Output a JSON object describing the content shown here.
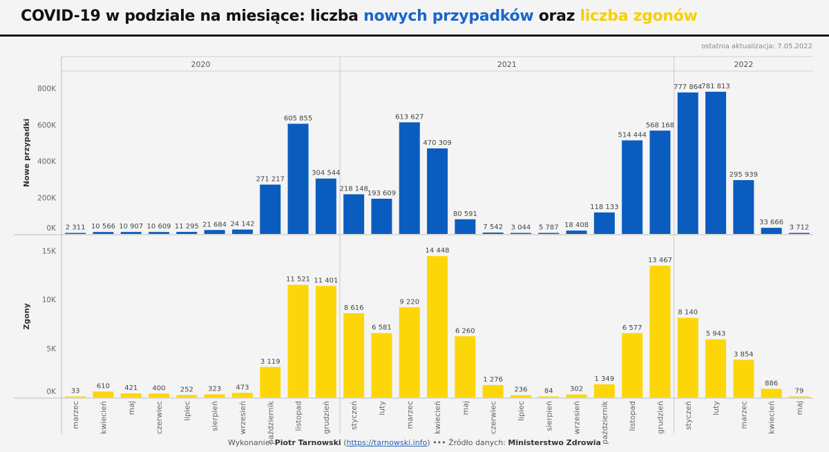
{
  "header": {
    "title_part1": "COVID-19 w podziale na miesiące: liczba ",
    "title_part2": "nowych przypadków",
    "title_part3": " oraz ",
    "title_part4": "liczba zgonów",
    "updated": "ostatnia aktualizacja: 7.05.2022"
  },
  "footer": {
    "made_by_label": "Wykonanie: ",
    "author": "Piotr Tarnowski",
    "link": "https://tarnowski.info",
    "separator": "•••",
    "source_label": "Źródło danych: ",
    "source": "Ministerstwo Zdrowia"
  },
  "colors": {
    "cases": "#0b5cbf",
    "deaths": "#fdd60a",
    "title_cases": "#1a66c9",
    "title_deaths": "#f5d000"
  },
  "chart_data": {
    "type": "bar",
    "years": [
      {
        "label": "2020",
        "count": 10
      },
      {
        "label": "2021",
        "count": 12
      },
      {
        "label": "2022",
        "count": 5
      }
    ],
    "categories": [
      "marzec",
      "kwiecień",
      "maj",
      "czerwiec",
      "lipiec",
      "sierpień",
      "wrzesień",
      "październik",
      "listopad",
      "grudzień",
      "styczeń",
      "luty",
      "marzec",
      "kwiecień",
      "maj",
      "czerwiec",
      "lipiec",
      "sierpień",
      "wrzesień",
      "październik",
      "listopad",
      "grudzień",
      "styczeń",
      "luty",
      "marzec",
      "kwiecień",
      "maj"
    ],
    "panels": [
      {
        "name": "Nowe przypadki",
        "ylabel": "Nowe przypadki",
        "ylim": [
          0,
          850000
        ],
        "ticks": [
          0,
          200000,
          400000,
          600000,
          800000
        ],
        "tick_labels": [
          "0K",
          "200K",
          "400K",
          "600K",
          "800K"
        ],
        "values": [
          2311,
          10566,
          10907,
          10609,
          11295,
          21684,
          24142,
          271217,
          605855,
          304544,
          218148,
          193609,
          613627,
          470309,
          80591,
          7542,
          3044,
          5787,
          18408,
          118133,
          514444,
          568168,
          777864,
          781813,
          295939,
          33666,
          3712
        ],
        "value_labels": [
          "2 311",
          "10 566",
          "10 907",
          "10 609",
          "11 295",
          "21 684",
          "24 142",
          "271 217",
          "605 855",
          "304 544",
          "218 148",
          "193 609",
          "613 627",
          "470 309",
          "80 591",
          "7 542",
          "3 044",
          "5 787",
          "18 408",
          "118 133",
          "514 444",
          "568 168",
          "777 864",
          "781 813",
          "295 939",
          "33 666",
          "3 712"
        ]
      },
      {
        "name": "Zgony",
        "ylabel": "Zgony",
        "ylim": [
          0,
          15800
        ],
        "ticks": [
          0,
          5000,
          10000,
          15000
        ],
        "tick_labels": [
          "0K",
          "5K",
          "10K",
          "15K"
        ],
        "values": [
          33,
          610,
          421,
          400,
          252,
          323,
          473,
          3119,
          11521,
          11401,
          8616,
          6581,
          9220,
          14448,
          6260,
          1276,
          236,
          84,
          302,
          1349,
          6577,
          13467,
          8140,
          5943,
          3854,
          886,
          79
        ],
        "value_labels": [
          "33",
          "610",
          "421",
          "400",
          "252",
          "323",
          "473",
          "3 119",
          "11 521",
          "11 401",
          "8 616",
          "6 581",
          "9 220",
          "14 448",
          "6 260",
          "1 276",
          "236",
          "84",
          "302",
          "1 349",
          "6 577",
          "13 467",
          "8 140",
          "5 943",
          "3 854",
          "886",
          "79"
        ]
      }
    ]
  }
}
